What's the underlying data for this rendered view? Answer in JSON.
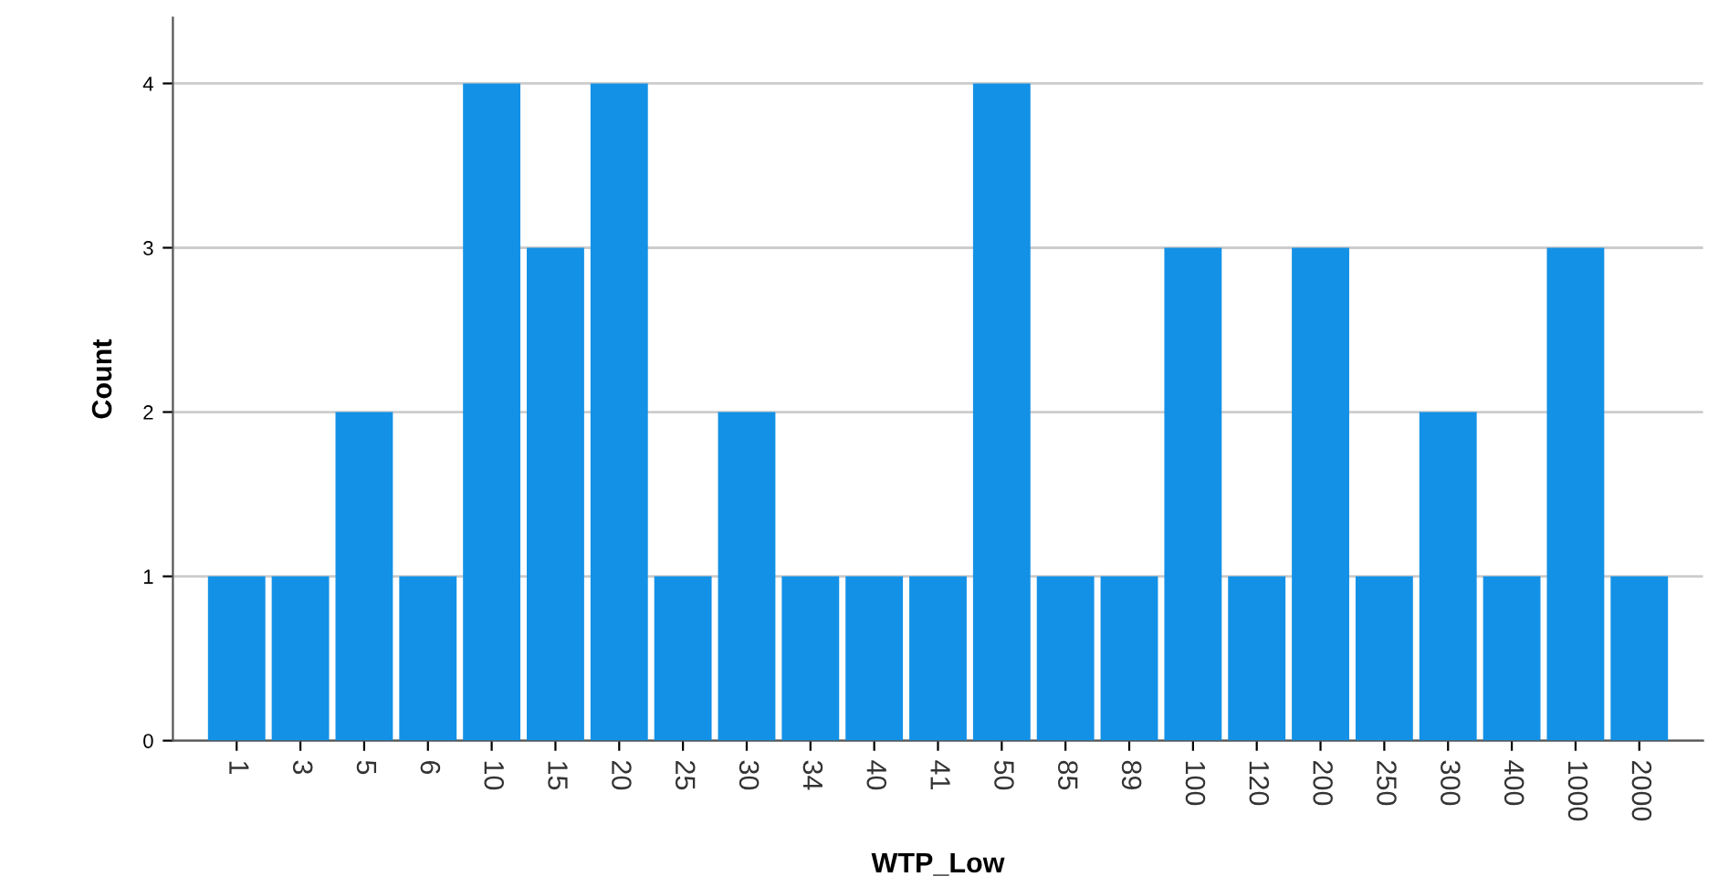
{
  "chart_data": {
    "type": "bar",
    "xlabel": "WTP_Low",
    "ylabel": "Count",
    "categories": [
      "1",
      "3",
      "5",
      "6",
      "10",
      "15",
      "20",
      "25",
      "30",
      "34",
      "40",
      "41",
      "50",
      "85",
      "89",
      "100",
      "120",
      "200",
      "250",
      "300",
      "400",
      "1000",
      "2000"
    ],
    "values": [
      1,
      1,
      2,
      1,
      4,
      3,
      4,
      1,
      2,
      1,
      1,
      1,
      4,
      1,
      1,
      3,
      1,
      3,
      1,
      2,
      1,
      3,
      1
    ],
    "color": "#1391e6",
    "ylim": [
      0,
      4.4
    ],
    "yticks": [
      0,
      1,
      2,
      3,
      4
    ],
    "grid": "y",
    "legend": false
  }
}
